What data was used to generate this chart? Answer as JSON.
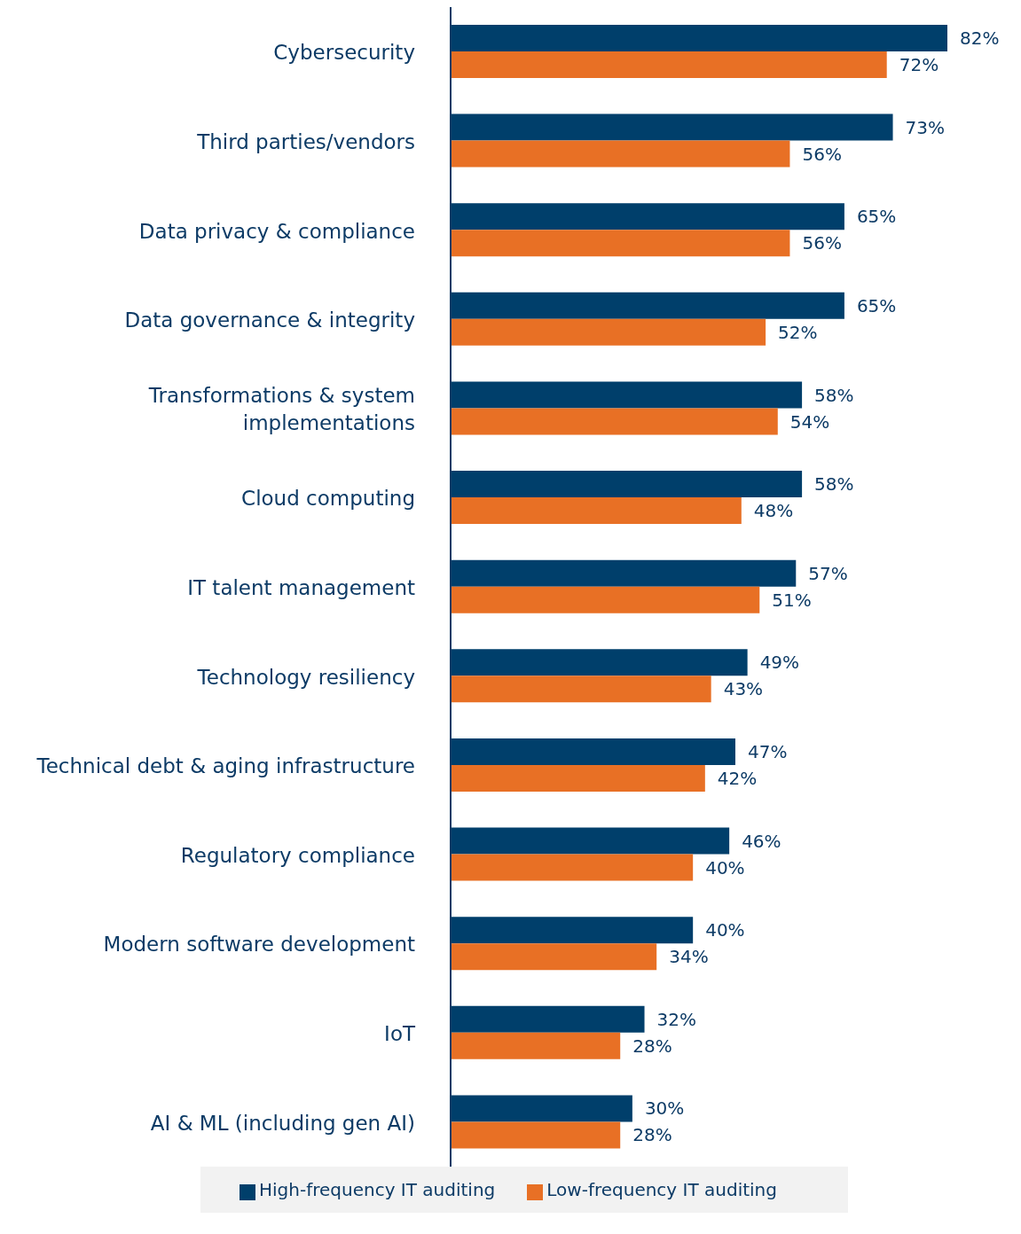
{
  "chart_data": {
    "type": "bar",
    "orientation": "horizontal",
    "categories": [
      "Cybersecurity",
      "Third parties/vendors",
      "Data privacy & compliance",
      "Data governance & integrity",
      "Transformations & system implementations",
      "Cloud computing",
      "IT talent management",
      "Technology resiliency",
      "Technical debt & aging infrastructure",
      "Regulatory compliance",
      "Modern software development",
      "IoT",
      "AI & ML (including gen AI)"
    ],
    "series": [
      {
        "name": "High-frequency IT auditing",
        "color": "#003f6b",
        "values": [
          82,
          73,
          65,
          65,
          58,
          58,
          57,
          49,
          47,
          46,
          40,
          32,
          30
        ],
        "value_labels": [
          "82%",
          "73%",
          "65%",
          "65%",
          "58%",
          "58%",
          "57%",
          "49%",
          "47%",
          "46%",
          "40%",
          "32%",
          "30%"
        ]
      },
      {
        "name": "Low-frequency IT auditing",
        "color": "#e87025",
        "values": [
          72,
          56,
          56,
          52,
          54,
          48,
          51,
          43,
          42,
          40,
          34,
          28,
          28
        ],
        "value_labels": [
          "72%",
          "56%",
          "56%",
          "52%",
          "54%",
          "48%",
          "51%",
          "43%",
          "42%",
          "40%",
          "34%",
          "28%",
          "28%"
        ]
      }
    ],
    "xlim": [
      0,
      82
    ],
    "tick_labels": "y",
    "legend": "bottom"
  }
}
